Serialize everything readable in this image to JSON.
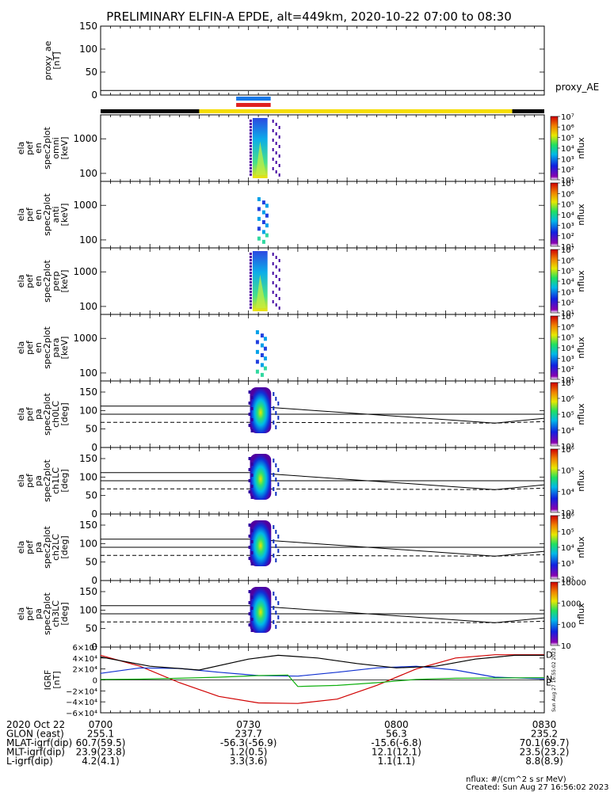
{
  "title": "PRELIMINARY ELFIN-A EPDE, alt=449km, 2020-10-22 07:00 to 08:30",
  "chart_data": {
    "type": "heatmap",
    "time_range": [
      "0700",
      "0830"
    ],
    "time_ticks": [
      {
        "t": 0,
        "label": "0700"
      },
      {
        "t": 30,
        "label": "0730"
      },
      {
        "t": 60,
        "label": "0800"
      },
      {
        "t": 90,
        "label": "0830"
      }
    ],
    "panels": [
      {
        "id": "proxy_ae",
        "ylabel_lines": [
          "proxy_ae",
          "[nT]"
        ],
        "ylim": [
          0,
          150
        ],
        "yticks": [
          {
            "v": 0,
            "label": "0"
          },
          {
            "v": 50,
            "label": "50"
          },
          {
            "v": 100,
            "label": "100"
          },
          {
            "v": 150,
            "label": "150"
          }
        ],
        "series_label": "proxy_AE",
        "line_value": 10
      },
      {
        "id": "spec_omni",
        "ylabel_lines": [
          "ela",
          "pef",
          "en",
          "spec2plot",
          "omni",
          "[keV]"
        ],
        "yticks": [
          {
            "label": "1000"
          },
          {
            "label": "100"
          }
        ],
        "colorbar": {
          "label": "nflux",
          "ticks": [
            "10⁷",
            "10⁶",
            "10⁵",
            "10⁴",
            "10³",
            "10²",
            "10¹"
          ]
        }
      },
      {
        "id": "spec_anti",
        "ylabel_lines": [
          "ela",
          "pef",
          "en",
          "spec2plot",
          "anti",
          "[keV]"
        ],
        "yticks": [
          {
            "label": "1000"
          },
          {
            "label": "100"
          }
        ],
        "colorbar": {
          "label": "nflux",
          "ticks": [
            "10⁷",
            "10⁶",
            "10⁵",
            "10⁴",
            "10³",
            "10²",
            "10¹"
          ]
        }
      },
      {
        "id": "spec_perp",
        "ylabel_lines": [
          "ela",
          "pef",
          "en",
          "spec2plot",
          "perp",
          "[keV]"
        ],
        "yticks": [
          {
            "label": "1000"
          },
          {
            "label": "100"
          }
        ],
        "colorbar": {
          "label": "nflux",
          "ticks": [
            "10⁷",
            "10⁶",
            "10⁵",
            "10⁴",
            "10³",
            "10²",
            "10¹"
          ]
        }
      },
      {
        "id": "spec_para",
        "ylabel_lines": [
          "ela",
          "pef",
          "en",
          "spec2plot",
          "para",
          "[keV]"
        ],
        "yticks": [
          {
            "label": "1000"
          },
          {
            "label": "100"
          }
        ],
        "colorbar": {
          "label": "nflux",
          "ticks": [
            "10⁷",
            "10⁶",
            "10⁵",
            "10⁴",
            "10³",
            "10²",
            "10¹"
          ]
        }
      },
      {
        "id": "pa_ch0",
        "ylabel_lines": [
          "ela",
          "pef",
          "pa",
          "spec2plot",
          "ch0LC",
          "[deg]"
        ],
        "ylim": [
          0,
          180
        ],
        "yticks": [
          {
            "v": 0,
            "label": "0"
          },
          {
            "v": 50,
            "label": "50"
          },
          {
            "v": 100,
            "label": "100"
          },
          {
            "v": 150,
            "label": "150"
          }
        ],
        "colorbar": {
          "label": "nflux",
          "ticks": [
            "10⁷",
            "10⁶",
            "10⁵",
            "10⁴",
            "10³"
          ]
        }
      },
      {
        "id": "pa_ch1",
        "ylabel_lines": [
          "ela",
          "pef",
          "pa",
          "spec2plot",
          "ch1LC",
          "[deg]"
        ],
        "ylim": [
          0,
          180
        ],
        "yticks": [
          {
            "v": 0,
            "label": "0"
          },
          {
            "v": 50,
            "label": "50"
          },
          {
            "v": 100,
            "label": "100"
          },
          {
            "v": 150,
            "label": "150"
          }
        ],
        "colorbar": {
          "label": "nflux",
          "ticks": [
            "10⁶",
            "10⁵",
            "10⁴",
            "10³"
          ]
        }
      },
      {
        "id": "pa_ch2",
        "ylabel_lines": [
          "ela",
          "pef",
          "pa",
          "spec2plot",
          "ch2LC",
          "[deg]"
        ],
        "ylim": [
          0,
          180
        ],
        "yticks": [
          {
            "v": 0,
            "label": "0"
          },
          {
            "v": 50,
            "label": "50"
          },
          {
            "v": 100,
            "label": "100"
          },
          {
            "v": 150,
            "label": "150"
          }
        ],
        "colorbar": {
          "label": "nflux",
          "ticks": [
            "10⁶",
            "10⁵",
            "10⁴",
            "10³",
            "10²"
          ]
        }
      },
      {
        "id": "pa_ch3",
        "ylabel_lines": [
          "ela",
          "pef",
          "pa",
          "spec2plot",
          "ch3LC",
          "[deg]"
        ],
        "ylim": [
          0,
          180
        ],
        "yticks": [
          {
            "v": 0,
            "label": "0"
          },
          {
            "v": 50,
            "label": "50"
          },
          {
            "v": 100,
            "label": "100"
          },
          {
            "v": 150,
            "label": "150"
          }
        ],
        "colorbar": {
          "label": "nflux",
          "ticks": [
            "10000",
            "1000",
            "100",
            "10"
          ]
        }
      },
      {
        "id": "bgrf",
        "ylabel_lines": [
          "IGRF",
          "[nT]"
        ],
        "ylim": [
          -60000,
          60000
        ],
        "yticks": [
          {
            "v": 60000,
            "label": "6×10⁴"
          },
          {
            "v": 40000,
            "label": "4×10⁴"
          },
          {
            "v": 20000,
            "label": "2×10⁴"
          },
          {
            "v": 0,
            "label": "0"
          },
          {
            "v": -20000,
            "label": "−2×10⁴"
          },
          {
            "v": -40000,
            "label": "−4×10⁴"
          },
          {
            "v": -60000,
            "label": "−6×10⁴"
          }
        ],
        "series": [
          {
            "name": "D",
            "color": "#d00000",
            "x": [
              0,
              8,
              16,
              24,
              32,
              40,
              48,
              56,
              64,
              72,
              80,
              90
            ],
            "y": [
              45000,
              25000,
              -5000,
              -30000,
              -42000,
              -43000,
              -35000,
              -10000,
              20000,
              40000,
              46000,
              46000
            ]
          },
          {
            "name": "N",
            "color": "#1030d0",
            "x": [
              0,
              8,
              16,
              24,
              32,
              40,
              48,
              56,
              64,
              72,
              80,
              90
            ],
            "y": [
              12000,
              22000,
              21000,
              14000,
              8000,
              7000,
              14000,
              22000,
              25000,
              18000,
              5000,
              2000
            ]
          },
          {
            "name": "E",
            "color": "#10b010",
            "x": [
              0,
              8,
              16,
              24,
              32,
              38,
              40,
              48,
              56,
              64,
              72,
              80,
              90
            ],
            "y": [
              1000,
              1500,
              3000,
              5000,
              8000,
              9000,
              -12000,
              -10000,
              -5000,
              1000,
              3000,
              3500,
              4000
            ]
          },
          {
            "name": "",
            "color": "#000000",
            "x": [
              0,
              10,
              20,
              30,
              36,
              44,
              52,
              60,
              68,
              76,
              84,
              90
            ],
            "y": [
              42000,
              25000,
              18000,
              38000,
              45000,
              40000,
              30000,
              22000,
              25000,
              38000,
              45000,
              45000
            ]
          }
        ]
      }
    ],
    "ephemeris": {
      "rows": [
        {
          "label": "2020 Oct 22",
          "values": [
            "0700",
            "0730",
            "0800",
            "0830"
          ]
        },
        {
          "label": "GLON (east)",
          "values": [
            "255.1",
            "237.7",
            "56.3",
            "235.2"
          ]
        },
        {
          "label": "MLAT-igrf(dip)",
          "values": [
            "60.7(59.5)",
            "-56.3(-56.9)",
            "-15.6(-6.8)",
            "70.1(69.7)"
          ]
        },
        {
          "label": "MLT-igrf(dip)",
          "values": [
            "23.9(23.8)",
            "1.2(0.5)",
            "12.1(12.1)",
            "23.5(23.2)"
          ]
        },
        {
          "label": "L-igrf(dip)",
          "values": [
            "4.2(4.1)",
            "3.3(3.6)",
            "1.1(1.1)",
            "8.8(8.9)"
          ]
        }
      ]
    },
    "footer": {
      "units": "nflux: #/(cm^2 s sr MeV)",
      "created": "Created: Sun Aug 27 16:56:02 2023",
      "stamp": "Sun Aug 27 16:55:02 2023"
    },
    "colors": {
      "bar_black": "#000000",
      "bar_yellow": "#f5dc00",
      "mark_blue": "#1878e8",
      "mark_red": "#e02020"
    }
  }
}
